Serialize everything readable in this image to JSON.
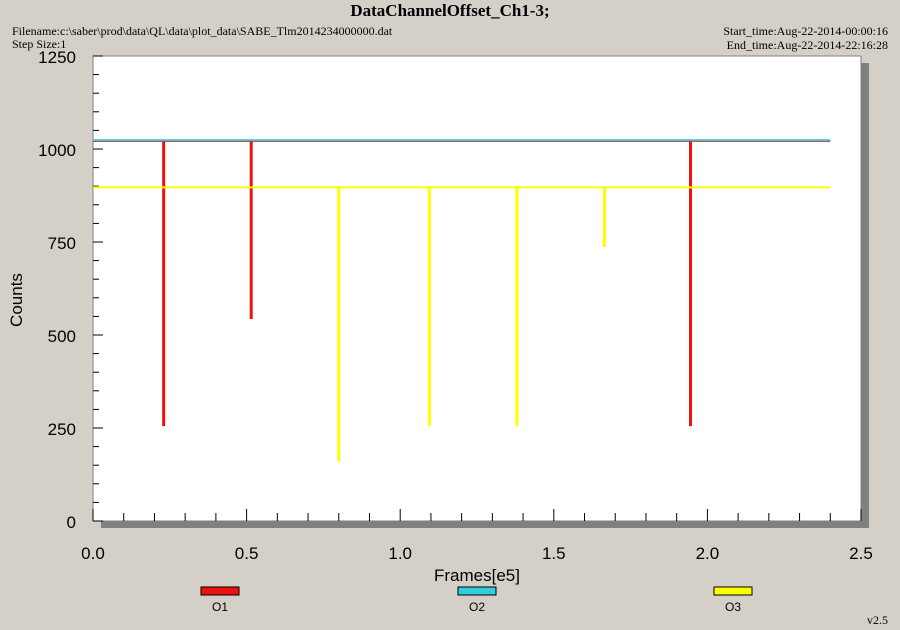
{
  "header": {
    "title": "DataChannelOffset_Ch1-3;",
    "filename": "Filename:c:\\saber\\prod\\data\\QL\\data\\plot_data\\SABE_Tlm2014234000000.dat",
    "step_size": "Step Size:1",
    "start_time": "Start_time:Aug-22-2014-00:00:16",
    "end_time": "End_time:Aug-22-2014-22:16:28",
    "version": "v2.5"
  },
  "colors": {
    "O1": "#ee1111",
    "O2": "#33ccdd",
    "O3": "#ffff00"
  },
  "chart_data": {
    "type": "line",
    "xlabel": "Frames[e5]",
    "ylabel": "Counts",
    "xlim": [
      0,
      2.5
    ],
    "ylim": [
      0,
      1250
    ],
    "xticks": [
      "0.0",
      "0.5",
      "1.0",
      "1.5",
      "2.0",
      "2.5"
    ],
    "yticks": [
      "0",
      "250",
      "500",
      "750",
      "1000",
      "1250"
    ],
    "legend_position": "bottom",
    "series": [
      {
        "name": "O1",
        "baseline": 1022,
        "spikes": [
          {
            "x": 0.23,
            "y": 255
          },
          {
            "x": 0.515,
            "y": 543
          },
          {
            "x": 1.945,
            "y": 255
          }
        ]
      },
      {
        "name": "O2",
        "baseline": 1024,
        "spikes": []
      },
      {
        "name": "O3",
        "baseline": 897,
        "spikes": [
          {
            "x": 0.8,
            "y": 160
          },
          {
            "x": 1.095,
            "y": 255
          },
          {
            "x": 1.38,
            "y": 255
          },
          {
            "x": 1.665,
            "y": 737
          }
        ]
      }
    ]
  }
}
